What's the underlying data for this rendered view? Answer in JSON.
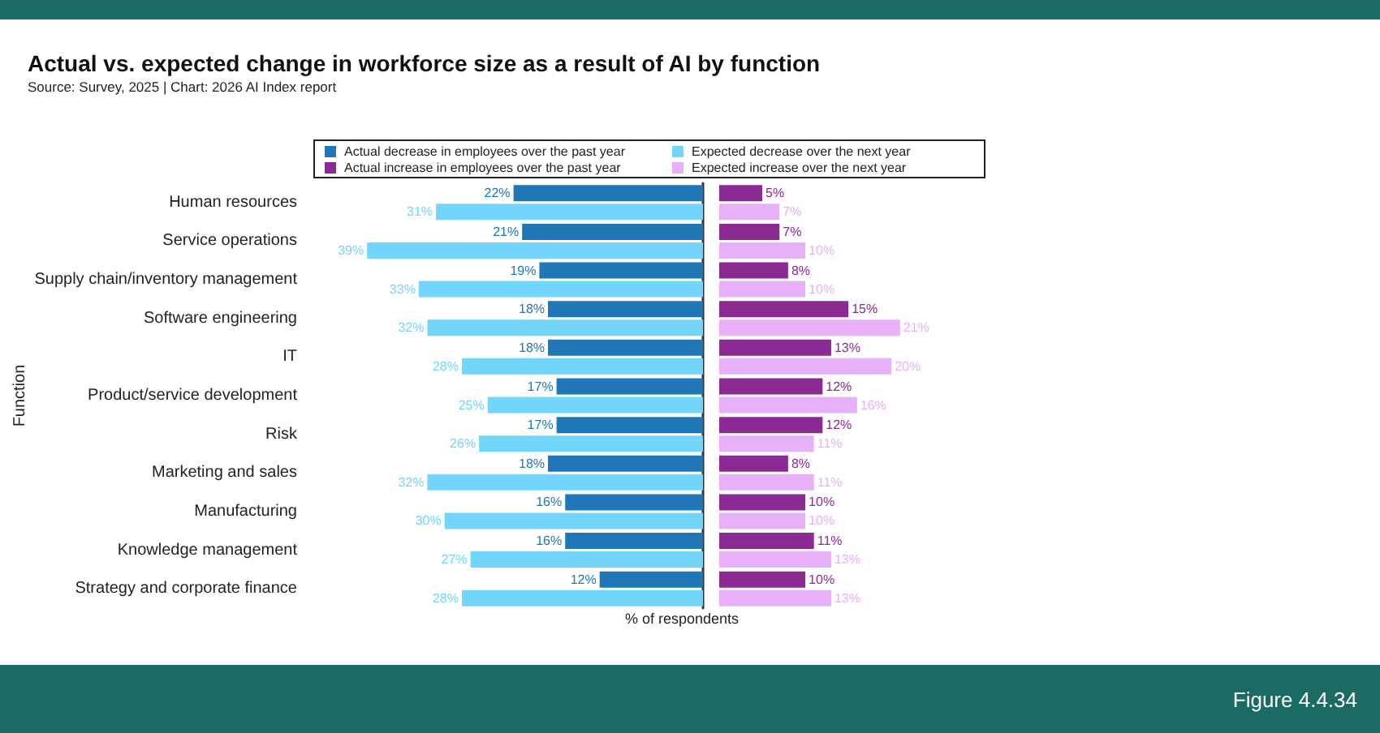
{
  "chart_data": [
    {
      "type": "bar",
      "orientation": "horizontal",
      "title": "Actual vs. expected change in workforce size as a result of AI by function",
      "subtitle": "Source: Survey, 2025 | Chart: 2026 AI Index report",
      "xlabel": "% of respondents",
      "ylabel": "Function",
      "annotations": [
        "Figure 4.4.34"
      ],
      "categories": [
        "Human resources",
        "Service operations",
        "Supply chain/inventory management",
        "Software engineering",
        "IT",
        "Product/service development",
        "Risk",
        "Marketing and sales",
        "Manufacturing",
        "Knowledge management",
        "Strategy and corporate finance"
      ],
      "series": [
        {
          "name": "Actual decrease in employees over the past year",
          "color": "#1f77b8",
          "values": [
            22,
            21,
            19,
            18,
            18,
            17,
            17,
            18,
            16,
            16,
            12
          ],
          "value_labels": [
            "22%",
            "21%",
            "19%",
            "18%",
            "18%",
            "17%",
            "17%",
            "18%",
            "16%",
            "16%",
            "12%"
          ]
        },
        {
          "name": "Expected decrease over the next year",
          "color": "#72d5fb",
          "values": [
            31,
            39,
            33,
            32,
            28,
            25,
            26,
            32,
            30,
            27,
            28
          ],
          "value_labels": [
            "31%",
            "39%",
            "33%",
            "32%",
            "28%",
            "25%",
            "26%",
            "32%",
            "30%",
            "27%",
            "28%"
          ]
        }
      ],
      "legend": "top",
      "tick_labels": "y"
    },
    {
      "type": "bar",
      "orientation": "horizontal",
      "series": [
        {
          "name": "Actual increase in employees over the past year",
          "color": "#8a2a92",
          "values": [
            5,
            7,
            8,
            15,
            13,
            12,
            12,
            8,
            10,
            11,
            10
          ],
          "value_labels": [
            "5%",
            "7%",
            "8%",
            "15%",
            "13%",
            "12%",
            "12%",
            "8%",
            "10%",
            "11%",
            "10%"
          ]
        },
        {
          "name": "Expected increase over the next year",
          "color": "#e8b0f8",
          "values": [
            7,
            10,
            10,
            21,
            20,
            16,
            11,
            11,
            10,
            13,
            13
          ],
          "value_labels": [
            "7%",
            "10%",
            "10%",
            "21%",
            "20%",
            "16%",
            "11%",
            "11%",
            "10%",
            "13%",
            "13%"
          ]
        }
      ],
      "legend": "top",
      "tick_labels": false
    }
  ]
}
